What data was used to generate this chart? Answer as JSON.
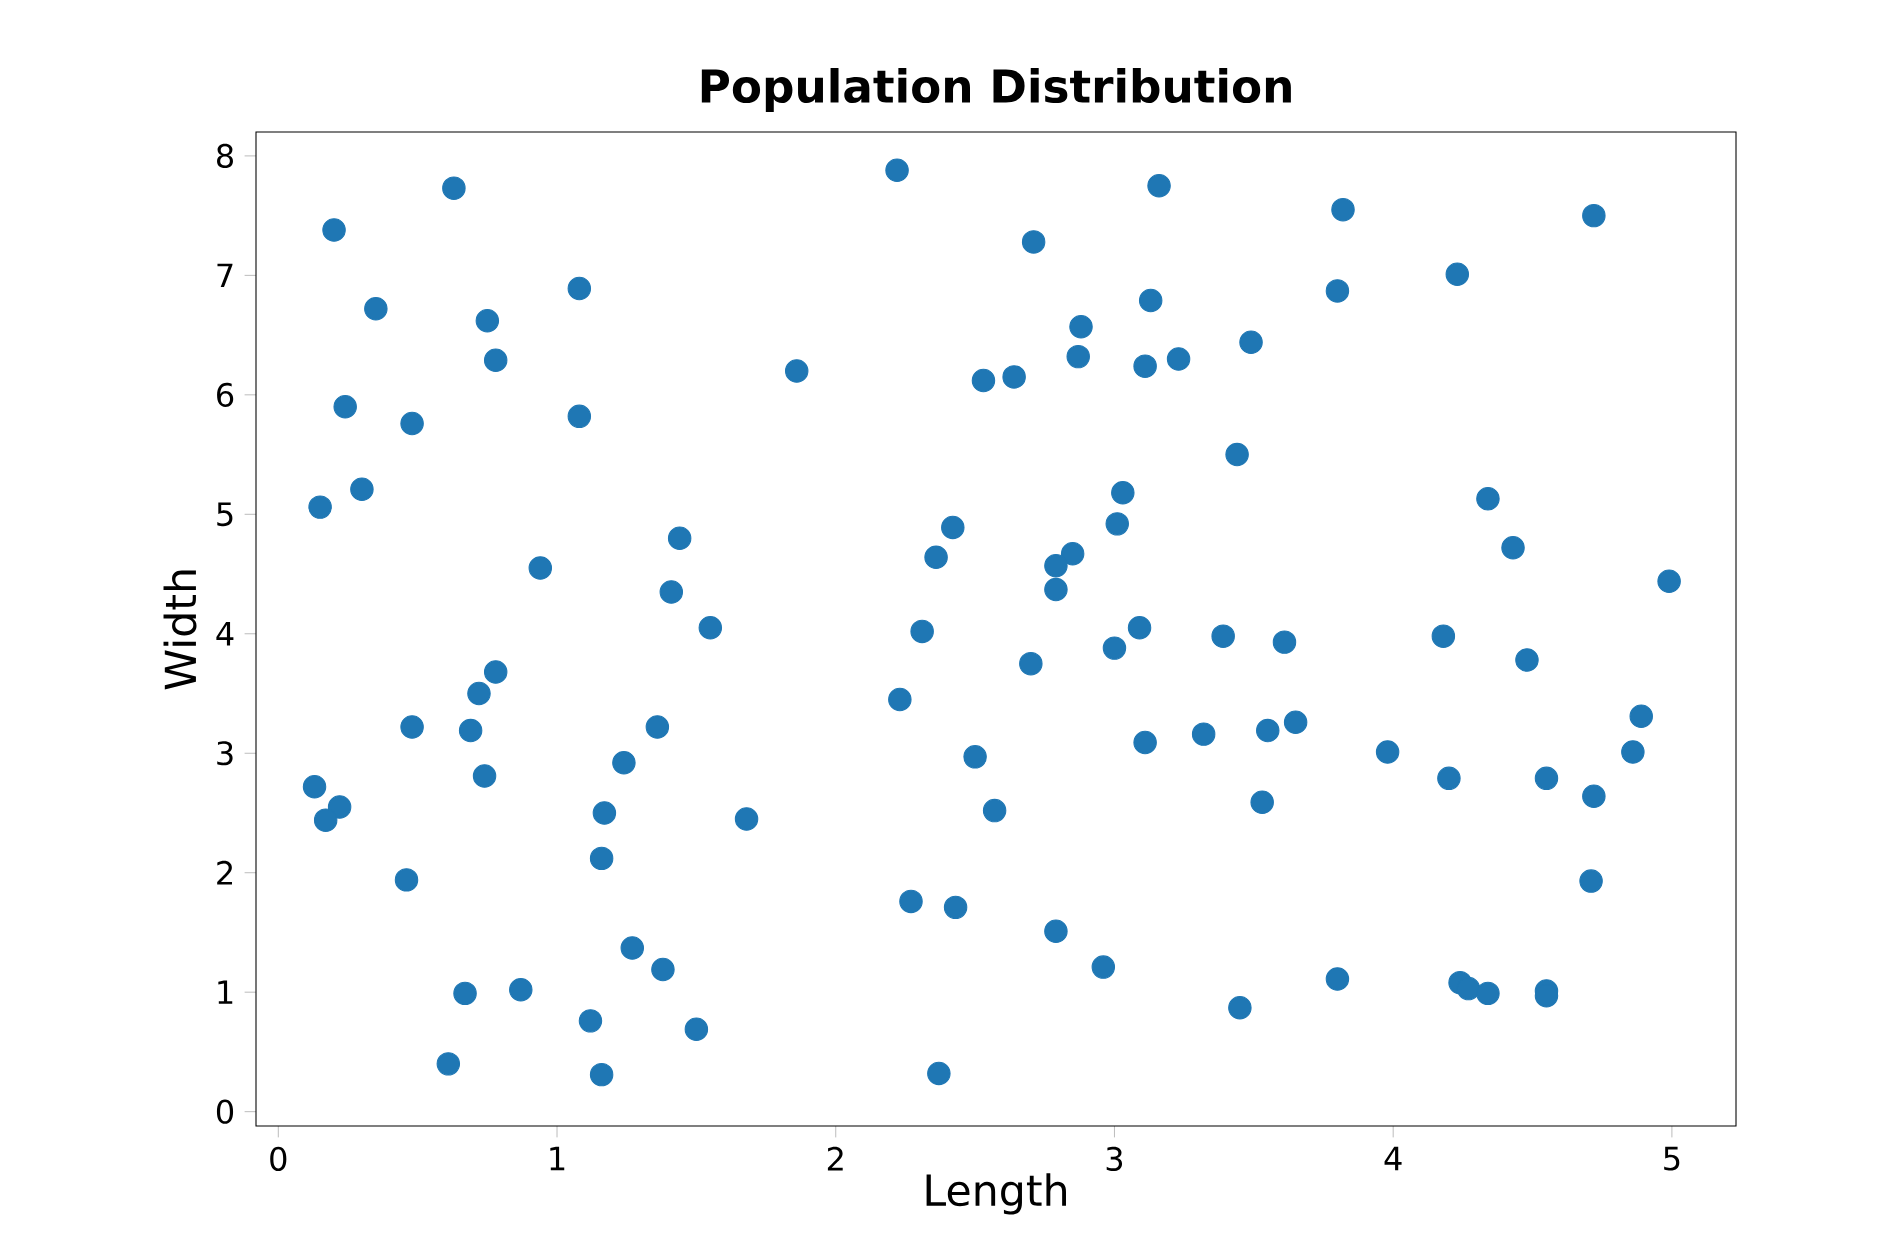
{
  "chart_data": {
    "type": "scatter",
    "title": "Population Distribution",
    "xlabel": "Length",
    "ylabel": "Width",
    "color": "#1f77b4",
    "marker": "circle",
    "xlim": [
      -0.08,
      5.23
    ],
    "ylim": [
      -0.12,
      8.2
    ],
    "xticks": [
      0,
      1,
      2,
      3,
      4,
      5
    ],
    "yticks": [
      0,
      1,
      2,
      3,
      4,
      5,
      6,
      7,
      8
    ],
    "x": [
      0.2,
      0.63,
      0.35,
      0.75,
      0.78,
      0.24,
      0.48,
      1.08,
      1.08,
      0.3,
      0.15,
      0.94,
      1.44,
      1.41,
      1.55,
      0.78,
      0.72,
      0.69,
      0.48,
      0.74,
      1.36,
      1.24,
      0.13,
      0.22,
      0.17,
      1.17,
      1.16,
      1.68,
      0.46,
      0.67,
      0.87,
      1.27,
      1.38,
      1.12,
      1.5,
      0.61,
      1.16,
      1.86,
      2.22,
      2.71,
      3.16,
      2.88,
      3.13,
      2.53,
      2.64,
      2.87,
      3.11,
      3.23,
      3.49,
      3.82,
      3.8,
      4.23,
      4.72,
      3.44,
      3.03,
      3.01,
      2.42,
      2.36,
      2.85,
      2.79,
      2.79,
      2.31,
      2.7,
      3.0,
      3.09,
      3.39,
      3.61,
      2.23,
      2.5,
      2.57,
      3.11,
      3.32,
      3.55,
      3.65,
      3.53,
      2.27,
      2.43,
      2.79,
      2.96,
      2.37,
      3.45,
      3.8,
      4.34,
      4.43,
      4.18,
      4.48,
      3.98,
      4.2,
      4.55,
      4.72,
      4.89,
      4.86,
      4.99,
      4.71,
      4.24,
      4.27,
      4.34,
      4.55,
      4.55
    ],
    "values": [
      7.38,
      7.73,
      6.72,
      6.62,
      6.29,
      5.9,
      5.76,
      6.89,
      5.82,
      5.21,
      5.06,
      4.55,
      4.8,
      4.35,
      4.05,
      3.68,
      3.5,
      3.19,
      3.22,
      2.81,
      3.22,
      2.92,
      2.72,
      2.55,
      2.44,
      2.5,
      2.12,
      2.45,
      1.94,
      0.99,
      1.02,
      1.37,
      1.19,
      0.76,
      0.69,
      0.4,
      0.31,
      6.2,
      7.88,
      7.28,
      7.75,
      6.57,
      6.79,
      6.12,
      6.15,
      6.32,
      6.24,
      6.3,
      6.44,
      7.55,
      6.87,
      7.01,
      7.5,
      5.5,
      5.18,
      4.92,
      4.89,
      4.64,
      4.67,
      4.57,
      4.37,
      4.02,
      3.75,
      3.88,
      4.05,
      3.98,
      3.93,
      3.45,
      2.97,
      2.52,
      3.09,
      3.16,
      3.19,
      3.26,
      2.59,
      1.76,
      1.71,
      1.51,
      1.21,
      0.32,
      0.87,
      1.11,
      5.13,
      4.72,
      3.98,
      3.78,
      3.01,
      2.79,
      2.79,
      2.64,
      3.31,
      3.01,
      4.44,
      1.93,
      1.08,
      1.03,
      0.99,
      1.01,
      0.97
    ]
  }
}
